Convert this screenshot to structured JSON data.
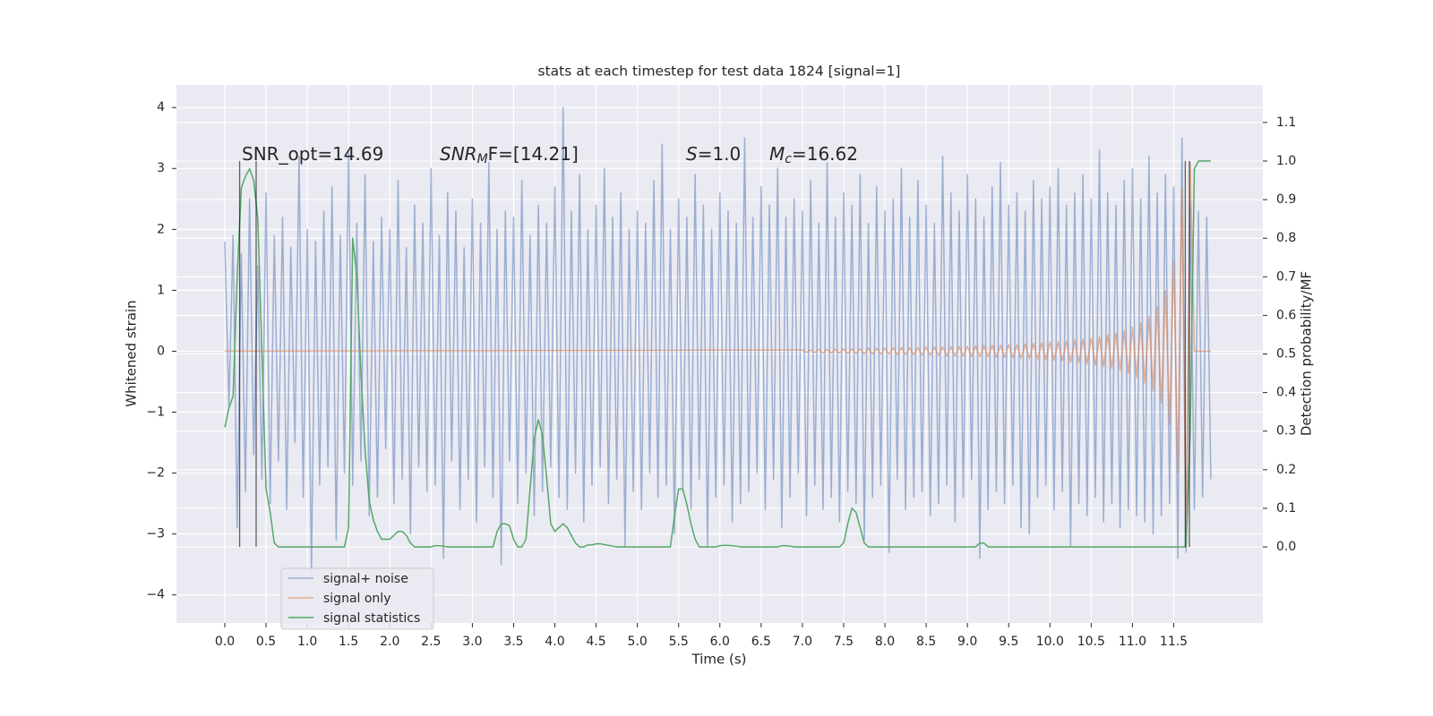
{
  "chart_data": {
    "type": "line",
    "title": "stats at each timestep for test data 1824 [signal=1]",
    "xlabel": "Time (s)",
    "ylabel": "Whitened strain",
    "y2label": "Detection probability/MF",
    "grid": true,
    "legend": "lower left",
    "xlim": [
      -0.586,
      12.58
    ],
    "ylim": [
      -4.46,
      4.37
    ],
    "y2lim": [
      -0.197,
      1.197
    ],
    "xticks": [
      {
        "value": 0,
        "label": "0.0"
      },
      0.5,
      {
        "value": 1,
        "label": "1.0"
      },
      1.5,
      {
        "value": 2,
        "label": "2.0"
      },
      2.5,
      {
        "value": 3,
        "label": "3.0"
      },
      3.5,
      {
        "value": 4,
        "label": "4.0"
      },
      4.5,
      {
        "value": 5,
        "label": "5.0"
      },
      5.5,
      {
        "value": 6,
        "label": "6.0"
      },
      6.5,
      {
        "value": 7,
        "label": "7.0"
      },
      7.5,
      {
        "value": 8,
        "label": "8.0"
      },
      8.5,
      {
        "value": 9,
        "label": "9.0"
      },
      9.5,
      {
        "value": 10,
        "label": "10.0"
      },
      10.5,
      {
        "value": 11,
        "label": "11.0"
      },
      11.5
    ],
    "yticks": [
      {
        "value": -4,
        "label": "−4"
      },
      {
        "value": -3,
        "label": "−3"
      },
      {
        "value": -2,
        "label": "−2"
      },
      {
        "value": -1,
        "label": "−1"
      },
      0,
      1,
      2,
      3,
      4
    ],
    "y2ticks": [
      {
        "value": 0,
        "label": "0.0"
      },
      0.1,
      0.2,
      0.3,
      0.4,
      0.5,
      0.6,
      0.7,
      0.8,
      0.9,
      {
        "value": 1,
        "label": "1.0"
      },
      1.1
    ],
    "annotations": [
      {
        "parts": [
          {
            "text": "SNR_opt=14.69"
          }
        ]
      },
      {
        "parts": [
          {
            "text": "SNR",
            "italic": true
          },
          {
            "text": "M",
            "italic": true,
            "sub": true
          },
          {
            "text": "F=[14.21]",
            "italic": false
          }
        ]
      },
      {
        "parts": [
          {
            "text": "S",
            "italic": true
          },
          {
            "text": "=1.0"
          }
        ]
      },
      {
        "parts": [
          {
            "text": "M",
            "italic": true
          },
          {
            "text": "c",
            "italic": true,
            "sub": true
          },
          {
            "text": "=16.62"
          }
        ]
      }
    ],
    "vlines": {
      "x": [
        0.18,
        0.38,
        11.64,
        11.69
      ],
      "range": [
        0,
        1
      ],
      "axis": "y2",
      "color": "#000000"
    },
    "x": [
      0.0,
      0.05,
      0.1,
      0.15,
      0.2,
      0.25,
      0.3,
      0.35,
      0.4,
      0.45,
      0.5,
      0.55,
      0.6,
      0.65,
      0.7,
      0.75,
      0.8,
      0.85,
      0.9,
      0.95,
      1.0,
      1.05,
      1.1,
      1.15,
      1.2,
      1.25,
      1.3,
      1.35,
      1.4,
      1.45,
      1.5,
      1.55,
      1.6,
      1.65,
      1.7,
      1.75,
      1.8,
      1.85,
      1.9,
      1.95,
      2.0,
      2.05,
      2.1,
      2.15,
      2.2,
      2.25,
      2.3,
      2.35,
      2.4,
      2.45,
      2.5,
      2.55,
      2.6,
      2.65,
      2.7,
      2.75,
      2.8,
      2.85,
      2.9,
      2.95,
      3.0,
      3.05,
      3.1,
      3.15,
      3.2,
      3.25,
      3.3,
      3.35,
      3.4,
      3.45,
      3.5,
      3.55,
      3.6,
      3.65,
      3.7,
      3.75,
      3.8,
      3.85,
      3.9,
      3.95,
      4.0,
      4.05,
      4.1,
      4.15,
      4.2,
      4.25,
      4.3,
      4.35,
      4.4,
      4.45,
      4.5,
      4.55,
      4.6,
      4.65,
      4.7,
      4.75,
      4.8,
      4.85,
      4.9,
      4.95,
      5.0,
      5.05,
      5.1,
      5.15,
      5.2,
      5.25,
      5.3,
      5.35,
      5.4,
      5.45,
      5.5,
      5.55,
      5.6,
      5.65,
      5.7,
      5.75,
      5.8,
      5.85,
      5.9,
      5.95,
      6.0,
      6.05,
      6.1,
      6.15,
      6.2,
      6.25,
      6.3,
      6.35,
      6.4,
      6.45,
      6.5,
      6.55,
      6.6,
      6.65,
      6.7,
      6.75,
      6.8,
      6.85,
      6.9,
      6.95,
      7.0,
      7.05,
      7.1,
      7.15,
      7.2,
      7.25,
      7.3,
      7.35,
      7.4,
      7.45,
      7.5,
      7.55,
      7.6,
      7.65,
      7.7,
      7.75,
      7.8,
      7.85,
      7.9,
      7.95,
      8.0,
      8.05,
      8.1,
      8.15,
      8.2,
      8.25,
      8.3,
      8.35,
      8.4,
      8.45,
      8.5,
      8.55,
      8.6,
      8.65,
      8.7,
      8.75,
      8.8,
      8.85,
      8.9,
      8.95,
      9.0,
      9.05,
      9.1,
      9.15,
      9.2,
      9.25,
      9.3,
      9.35,
      9.4,
      9.45,
      9.5,
      9.55,
      9.6,
      9.65,
      9.7,
      9.75,
      9.8,
      9.85,
      9.9,
      9.95,
      10.0,
      10.05,
      10.1,
      10.15,
      10.2,
      10.25,
      10.3,
      10.35,
      10.4,
      10.45,
      10.5,
      10.55,
      10.6,
      10.65,
      10.7,
      10.75,
      10.8,
      10.85,
      10.9,
      10.95,
      11.0,
      11.05,
      11.1,
      11.15,
      11.2,
      11.25,
      11.3,
      11.35,
      11.4,
      11.45,
      11.5,
      11.55,
      11.6,
      11.65,
      11.7,
      11.75,
      11.8,
      11.85,
      11.9,
      11.95
    ],
    "series": [
      {
        "name": "signal+ noise",
        "color": "#4c72b0",
        "alpha": 0.5,
        "values": [
          1.8,
          -0.9,
          1.9,
          -2.9,
          1.6,
          -2.3,
          2.5,
          -1.7,
          1.4,
          -2.1,
          2.6,
          -2.5,
          1.9,
          -1.8,
          2.2,
          -2.6,
          1.7,
          -1.5,
          3.2,
          -2.4,
          2.0,
          -3.6,
          1.8,
          -2.2,
          2.3,
          -1.9,
          2.7,
          -3.1,
          1.9,
          -2.0,
          3.3,
          -2.2,
          2.1,
          -1.8,
          2.9,
          -2.7,
          1.8,
          -2.4,
          2.2,
          -1.6,
          2.0,
          -2.5,
          2.8,
          -2.1,
          1.7,
          -3.0,
          2.4,
          -1.9,
          2.1,
          -2.3,
          3.0,
          -2.2,
          1.9,
          -3.4,
          2.6,
          -1.8,
          2.3,
          -2.6,
          1.7,
          -2.1,
          2.5,
          -2.8,
          2.1,
          -1.9,
          3.1,
          -2.4,
          2.0,
          -3.5,
          2.3,
          -1.8,
          2.2,
          -2.5,
          2.8,
          -2.0,
          1.9,
          -2.7,
          2.4,
          -2.3,
          2.1,
          -1.9,
          2.7,
          -2.4,
          4.0,
          -2.6,
          2.3,
          -2.0,
          2.9,
          -2.8,
          2.0,
          -2.2,
          2.4,
          -1.9,
          3.0,
          -2.5,
          2.2,
          -2.1,
          2.6,
          -3.2,
          2.0,
          -2.3,
          2.3,
          -2.6,
          2.1,
          -2.0,
          2.8,
          -2.4,
          3.4,
          -2.2,
          2.0,
          -3.0,
          2.5,
          -2.3,
          2.2,
          -2.6,
          2.9,
          -2.1,
          2.4,
          -3.2,
          2.0,
          -2.4,
          2.6,
          -2.2,
          2.3,
          -2.8,
          2.1,
          -2.5,
          3.5,
          -2.3,
          2.2,
          -2.0,
          2.7,
          -2.6,
          2.4,
          -2.1,
          3.0,
          -2.9,
          2.2,
          -2.4,
          2.5,
          -2.0,
          2.3,
          -2.7,
          2.8,
          -2.2,
          2.1,
          -2.6,
          3.1,
          -2.4,
          2.2,
          -2.8,
          2.6,
          -2.3,
          2.4,
          -2.5,
          2.9,
          -3.1,
          2.1,
          -2.4,
          2.7,
          -2.2,
          2.3,
          -3.3,
          2.5,
          -2.1,
          3.0,
          -2.6,
          2.2,
          -2.4,
          2.8,
          -2.3,
          2.4,
          -2.7,
          2.1,
          -2.5,
          3.2,
          -2.2,
          2.6,
          -2.8,
          2.3,
          -2.4,
          2.9,
          -2.1,
          2.5,
          -3.4,
          2.2,
          -2.6,
          2.7,
          -2.3,
          3.1,
          -2.5,
          2.4,
          -2.2,
          2.6,
          -2.9,
          2.3,
          -3.0,
          2.8,
          -2.4,
          2.5,
          -2.2,
          2.7,
          -2.6,
          3.0,
          -2.3,
          2.4,
          -3.2,
          2.6,
          -2.5,
          2.9,
          -2.7,
          2.5,
          -2.4,
          3.3,
          -2.8,
          2.6,
          -2.5,
          2.4,
          -2.9,
          2.8,
          -2.6,
          3.0,
          -2.7,
          2.5,
          -2.8,
          3.2,
          -3.0,
          2.6,
          -2.7,
          2.9,
          -2.5,
          2.7,
          -3.4,
          3.5,
          -3.3,
          2.4,
          -2.6,
          2.3,
          -2.4,
          2.2,
          -2.1
        ]
      },
      {
        "name": "signal only",
        "color": "#dd8452",
        "alpha": 0.6,
        "x": [
          0.0,
          7.0,
          7.05,
          7.1,
          7.15,
          7.2,
          7.25,
          7.3,
          7.35,
          7.4,
          7.45,
          7.5,
          7.55,
          7.6,
          7.65,
          7.7,
          7.75,
          7.8,
          7.85,
          7.9,
          7.95,
          8.0,
          8.05,
          8.1,
          8.15,
          8.2,
          8.25,
          8.3,
          8.35,
          8.4,
          8.45,
          8.5,
          8.55,
          8.6,
          8.65,
          8.7,
          8.75,
          8.8,
          8.85,
          8.9,
          8.95,
          9.0,
          9.05,
          9.1,
          9.15,
          9.2,
          9.25,
          9.3,
          9.35,
          9.4,
          9.45,
          9.5,
          9.55,
          9.6,
          9.65,
          9.7,
          9.75,
          9.8,
          9.85,
          9.9,
          9.95,
          10.0,
          10.05,
          10.1,
          10.15,
          10.2,
          10.25,
          10.3,
          10.35,
          10.4,
          10.45,
          10.5,
          10.55,
          10.6,
          10.65,
          10.7,
          10.75,
          10.8,
          10.85,
          10.9,
          10.95,
          11.0,
          11.05,
          11.1,
          11.15,
          11.2,
          11.25,
          11.3,
          11.35,
          11.4,
          11.45,
          11.5,
          11.55,
          11.6,
          11.65,
          11.7,
          11.75,
          11.95
        ],
        "values": [
          0,
          0.02,
          -0.02,
          0.02,
          -0.02,
          0.03,
          -0.03,
          0.03,
          -0.03,
          0.03,
          -0.03,
          0.04,
          -0.04,
          0.04,
          -0.04,
          0.04,
          -0.05,
          0.05,
          -0.05,
          0.05,
          -0.05,
          0.05,
          -0.05,
          0.06,
          -0.06,
          0.06,
          -0.06,
          0.06,
          -0.06,
          0.06,
          -0.07,
          0.07,
          -0.07,
          0.07,
          -0.07,
          0.07,
          -0.08,
          0.08,
          -0.08,
          0.08,
          -0.08,
          0.08,
          -0.09,
          0.09,
          -0.09,
          0.09,
          -0.09,
          0.1,
          -0.1,
          0.1,
          -0.1,
          0.11,
          -0.11,
          0.11,
          -0.12,
          0.12,
          -0.12,
          0.13,
          -0.13,
          0.14,
          -0.14,
          0.15,
          -0.15,
          0.16,
          -0.16,
          0.17,
          -0.18,
          0.18,
          -0.19,
          0.2,
          -0.21,
          0.22,
          -0.23,
          0.24,
          -0.25,
          0.27,
          -0.28,
          0.3,
          -0.32,
          0.34,
          -0.37,
          0.4,
          -0.43,
          0.47,
          -0.52,
          0.58,
          -0.65,
          0.74,
          -0.85,
          1.0,
          -1.2,
          1.5,
          -2.0,
          2.7,
          -3.2,
          3.1,
          0,
          0
        ]
      },
      {
        "name": "signal statistics",
        "color": "#55a868",
        "alpha": 1,
        "axis": "y2",
        "values": [
          0.31,
          0.36,
          0.39,
          0.7,
          0.93,
          0.96,
          0.98,
          0.95,
          0.85,
          0.5,
          0.15,
          0.09,
          0.01,
          0,
          0,
          0,
          0,
          0,
          0,
          0,
          0,
          0,
          0,
          0,
          0,
          0,
          0,
          0,
          0,
          0,
          0.05,
          0.8,
          0.7,
          0.45,
          0.25,
          0.12,
          0.07,
          0.04,
          0.02,
          0.02,
          0.02,
          0.03,
          0.04,
          0.04,
          0.03,
          0.01,
          0,
          0,
          0,
          0,
          0,
          0.003,
          0.003,
          0.002,
          0,
          0,
          0,
          0,
          0,
          0,
          0,
          0,
          0,
          0,
          0,
          0,
          0.04,
          0.06,
          0.06,
          0.055,
          0.02,
          0,
          0,
          0.02,
          0.15,
          0.28,
          0.33,
          0.29,
          0.18,
          0.06,
          0.04,
          0.05,
          0.06,
          0.05,
          0.03,
          0.01,
          0,
          0,
          0.005,
          0.005,
          0.008,
          0.008,
          0.006,
          0.004,
          0.002,
          0,
          0,
          0,
          0,
          0,
          0,
          0,
          0,
          0,
          0,
          0,
          0,
          0,
          0,
          0.08,
          0.15,
          0.15,
          0.11,
          0.06,
          0.02,
          0,
          0,
          0,
          0,
          0,
          0.003,
          0.004,
          0.004,
          0.003,
          0.002,
          0,
          0,
          0,
          0,
          0,
          0,
          0,
          0,
          0,
          0,
          0.003,
          0.003,
          0.002,
          0,
          0,
          0,
          0,
          0,
          0,
          0,
          0,
          0,
          0,
          0,
          0,
          0.01,
          0.06,
          0.1,
          0.09,
          0.05,
          0.01,
          0,
          0,
          0,
          0,
          0,
          0,
          0,
          0,
          0,
          0,
          0,
          0,
          0,
          0,
          0,
          0,
          0,
          0,
          0,
          0,
          0,
          0,
          0,
          0,
          0,
          0,
          0,
          0.01,
          0.01,
          0,
          0,
          0,
          0,
          0,
          0,
          0,
          0,
          0,
          0,
          0,
          0,
          0,
          0,
          0,
          0,
          0,
          0,
          0,
          0,
          0,
          0,
          0,
          0,
          0,
          0,
          0,
          0,
          0,
          0,
          0,
          0,
          0,
          0,
          0,
          0,
          0,
          0,
          0,
          0,
          0,
          0,
          0,
          0,
          0,
          0,
          0,
          0,
          0,
          0.3,
          0.98,
          1,
          1,
          1,
          1
        ]
      }
    ]
  }
}
